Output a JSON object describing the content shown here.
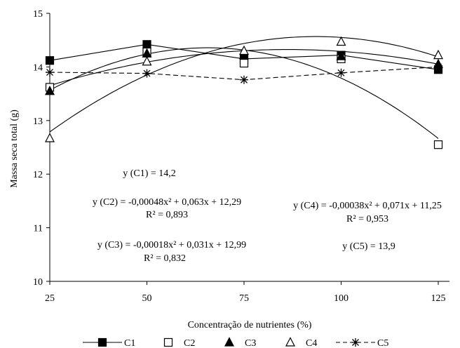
{
  "chart_data": {
    "type": "line",
    "title": "",
    "xlabel": "Concentração de nutrientes (%)",
    "ylabel": "Massa seca total (g)",
    "x": [
      25,
      50,
      75,
      100,
      125
    ],
    "x_ticks": [
      25,
      50,
      75,
      100,
      125
    ],
    "y_ticks": [
      10,
      11,
      12,
      13,
      14,
      15
    ],
    "xlim": [
      25,
      125
    ],
    "ylim": [
      10,
      15
    ],
    "grid": false,
    "legend_position": "bottom",
    "series": [
      {
        "name": "C1",
        "marker": "square-filled",
        "values": [
          14.12,
          14.42,
          14.15,
          14.22,
          13.95
        ],
        "fit": {
          "kind": "constant",
          "c": 14.2
        }
      },
      {
        "name": "C2",
        "marker": "square-open",
        "values": [
          13.62,
          14.28,
          14.07,
          14.15,
          12.55
        ],
        "fit": {
          "kind": "quadratic",
          "a": -0.00048,
          "b": 0.063,
          "c": 12.29
        }
      },
      {
        "name": "C3",
        "marker": "triangle-filled",
        "values": [
          13.55,
          14.25,
          14.22,
          14.2,
          14.05
        ],
        "fit": {
          "kind": "quadratic",
          "a": -0.00018,
          "b": 0.031,
          "c": 12.99
        }
      },
      {
        "name": "C4",
        "marker": "triangle-open",
        "values": [
          12.67,
          14.1,
          14.3,
          14.47,
          14.22
        ],
        "fit": {
          "kind": "quadratic",
          "a": -0.00038,
          "b": 0.071,
          "c": 11.25
        }
      },
      {
        "name": "C5",
        "marker": "asterisk",
        "dashed": true,
        "values": [
          13.9,
          13.88,
          13.76,
          13.89,
          14.0
        ]
      }
    ],
    "annotations": [
      {
        "id": "c1",
        "lines": [
          "y (C1) = 14,2"
        ]
      },
      {
        "id": "c2",
        "lines": [
          "y (C2) = -0,00048x² + 0,063x + 12,29",
          "R² = 0,893"
        ]
      },
      {
        "id": "c3",
        "lines": [
          "y (C3) = -0,00018x² + 0,031x + 12,99",
          "R² = 0,832"
        ]
      },
      {
        "id": "c4",
        "lines": [
          "y (C4) = -0,00038x² + 0,071x + 11,25",
          "R² = 0,953"
        ]
      },
      {
        "id": "c5",
        "lines": [
          "y (C5) = 13,9"
        ]
      }
    ]
  }
}
